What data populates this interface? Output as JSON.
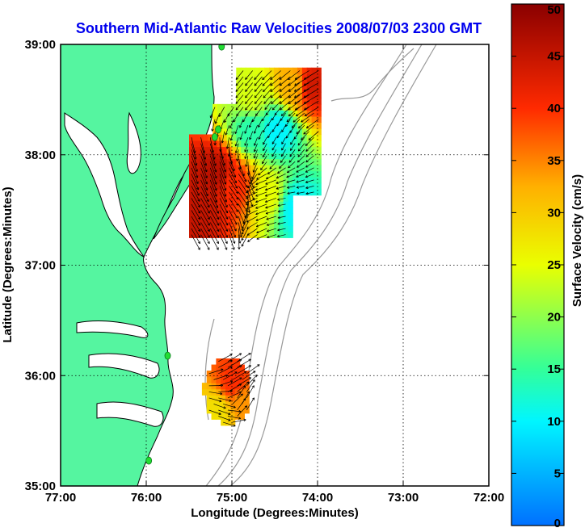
{
  "chart_data": {
    "type": "heatmap",
    "title": "Southern Mid-Atlantic Raw Velocities 2008/07/03 2300 GMT",
    "xlabel": "Longitude (Degrees:Minutes)",
    "ylabel": "Latitude (Degrees:Minutes)",
    "x_ticks": [
      "77:00",
      "76:00",
      "75:00",
      "74:00",
      "73:00",
      "72:00"
    ],
    "x_tick_values": [
      -77,
      -76,
      -75,
      -74,
      -73,
      -72
    ],
    "y_ticks": [
      "39:00",
      "38:00",
      "37:00",
      "36:00",
      "35:00"
    ],
    "y_tick_values": [
      39,
      38,
      37,
      36,
      35
    ],
    "xlim": [
      -77,
      -72
    ],
    "ylim": [
      35,
      39
    ],
    "grid": true,
    "colorbar": {
      "label": "Surface Velocity (cm/s)",
      "range": [
        0,
        50
      ],
      "ticks": [
        "0",
        "5",
        "10",
        "15",
        "20",
        "25",
        "30",
        "35",
        "40",
        "45",
        "50"
      ],
      "tick_values": [
        0,
        5,
        10,
        15,
        20,
        25,
        30,
        35,
        40,
        45,
        50
      ]
    },
    "colors": {
      "land": "#55f5a0",
      "ocean": "#ffffff",
      "coast_outline": "#000000",
      "bathymetry": "#999999",
      "station": "#22dd33",
      "title": "#0000ee",
      "grid": "#000000"
    },
    "stations": [
      {
        "lon": -75.12,
        "lat": 38.98
      },
      {
        "lon": -75.16,
        "lat": 38.23
      },
      {
        "lon": -75.2,
        "lat": 38.16
      },
      {
        "lon": -75.75,
        "lat": 36.18
      },
      {
        "lon": -75.97,
        "lat": 35.23
      }
    ],
    "velocity_regions": [
      {
        "name_hint": "north patch",
        "lon_range": [
          -75.5,
          -74.0
        ],
        "lat_range": [
          37.25,
          38.78
        ],
        "samples": [
          {
            "lon": -75.4,
            "lat": 37.5,
            "speed": 45,
            "dir": 300
          },
          {
            "lon": -75.2,
            "lat": 37.8,
            "speed": 46,
            "dir": 290
          },
          {
            "lon": -75.0,
            "lat": 37.7,
            "speed": 40,
            "dir": 305
          },
          {
            "lon": -74.8,
            "lat": 38.2,
            "speed": 14,
            "dir": 250
          },
          {
            "lon": -74.5,
            "lat": 38.2,
            "speed": 10,
            "dir": 240
          },
          {
            "lon": -74.3,
            "lat": 38.6,
            "speed": 32,
            "dir": 220
          },
          {
            "lon": -74.1,
            "lat": 38.6,
            "speed": 44,
            "dir": 210
          },
          {
            "lon": -74.8,
            "lat": 38.5,
            "speed": 24,
            "dir": 230
          },
          {
            "lon": -74.6,
            "lat": 37.6,
            "speed": 25,
            "dir": 200
          },
          {
            "lon": -74.3,
            "lat": 37.5,
            "speed": 10,
            "dir": 190
          }
        ]
      },
      {
        "name_hint": "south patch",
        "lon_range": [
          -75.35,
          -74.8
        ],
        "lat_range": [
          35.55,
          36.15
        ],
        "samples": [
          {
            "lon": -75.0,
            "lat": 35.9,
            "speed": 40,
            "dir": 30
          },
          {
            "lon": -75.2,
            "lat": 35.65,
            "speed": 28,
            "dir": 340
          },
          {
            "lon": -74.9,
            "lat": 35.75,
            "speed": 34,
            "dir": 60
          }
        ]
      }
    ]
  }
}
